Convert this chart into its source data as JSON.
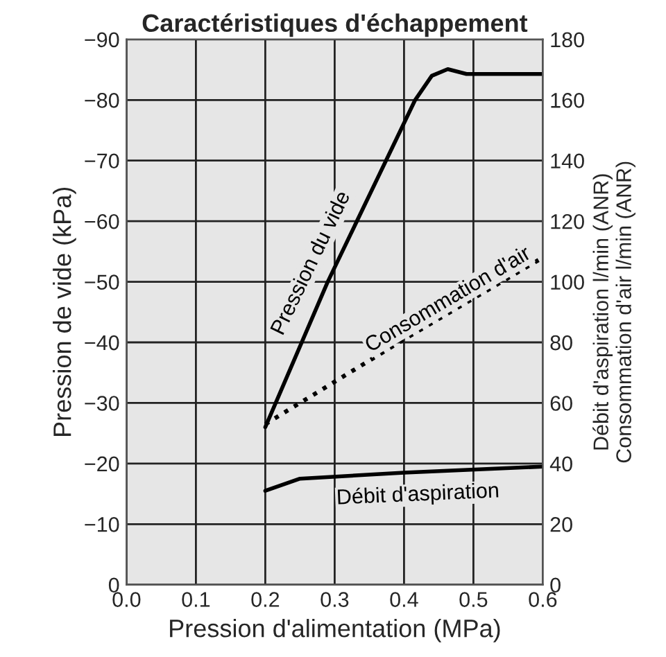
{
  "chart_data": {
    "type": "line",
    "title": "Caractéristiques d'échappement",
    "xlabel": "Pression d'alimentation (MPa)",
    "ylabel": "Pression de vide (kPa)",
    "y2label": "Débit d'aspiration l/min (ANR)\nConsommation d'air l/min (ANR)",
    "xlim": [
      0.0,
      0.6
    ],
    "xticks": [
      {
        "value": 0.0,
        "label": "0.0"
      },
      0.1,
      0.2,
      0.3,
      0.4,
      0.5,
      0.6
    ],
    "ylim": [
      0,
      -90
    ],
    "yticks": [
      0,
      {
        "value": -10,
        "label": "−10"
      },
      {
        "value": -20,
        "label": "−20"
      },
      {
        "value": -30,
        "label": "−30"
      },
      {
        "value": -40,
        "label": "−40"
      },
      {
        "value": -50,
        "label": "−50"
      },
      {
        "value": -60,
        "label": "−60"
      },
      {
        "value": -70,
        "label": "−70"
      },
      {
        "value": -80,
        "label": "−80"
      },
      {
        "value": -90,
        "label": "−90"
      }
    ],
    "y2lim": [
      0,
      180
    ],
    "y2ticks": [
      0,
      20,
      40,
      60,
      80,
      100,
      120,
      140,
      160,
      180
    ],
    "grid": true,
    "legend": false,
    "marker": "none",
    "series": [
      {
        "name": "Pression du vide",
        "color": "#000000",
        "line_style": "solid",
        "x": [
          0.2,
          0.29,
          0.374,
          0.416,
          0.44,
          0.463,
          0.49,
          0.6
        ],
        "values": [
          -26,
          -50,
          -70,
          -80,
          -84,
          -85.1,
          -84.3,
          -84.3
        ]
      },
      {
        "name": "Consommation d'air",
        "color": "#000000",
        "line_style": "dotted",
        "axis": "y2",
        "x": [
          0.2,
          0.4,
          0.6
        ],
        "values": [
          53,
          81,
          108
        ]
      },
      {
        "name": "Débit d'aspiration",
        "color": "#000000",
        "line_style": "solid",
        "axis": "y2",
        "x": [
          0.2,
          0.25,
          0.4,
          0.6
        ],
        "values": [
          31,
          35,
          37,
          39
        ]
      }
    ]
  }
}
